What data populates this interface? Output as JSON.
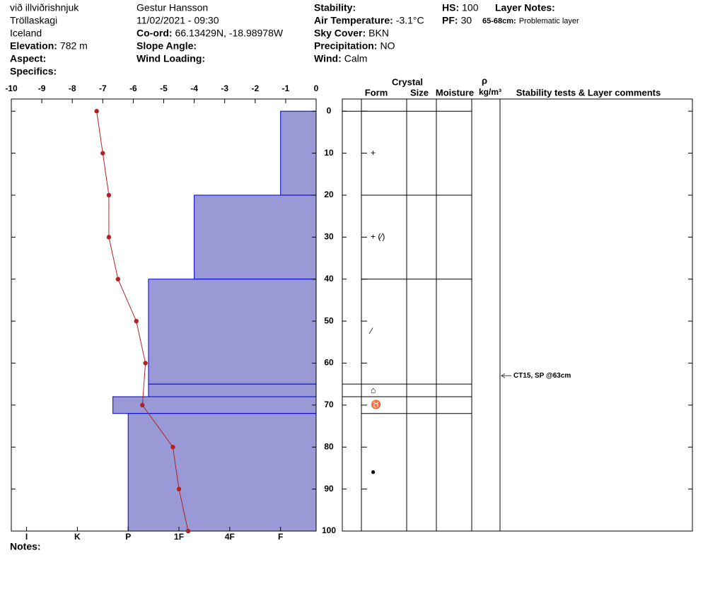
{
  "chart_data": {
    "type": "snow_profile",
    "header": {
      "location": [
        "við illviðrishnjuk",
        "Tröllaskagi",
        "Iceland"
      ],
      "observer": "Gestur Hansson",
      "datetime": "11/02/2021 - 09:30",
      "fields": {
        "elevation": {
          "label": "Elevation:",
          "value": "782 m"
        },
        "aspect": {
          "label": "Aspect:"
        },
        "specifics": {
          "label": "Specifics:"
        },
        "coord": {
          "label": "Co-ord:",
          "value": "66.13429N, -18.98978W"
        },
        "slope_angle": {
          "label": "Slope Angle:"
        },
        "wind_loading": {
          "label": "Wind Loading:"
        },
        "stability": {
          "label": "Stability:"
        },
        "air_temperature": {
          "label": "Air Temperature:",
          "value": "-3.1°C"
        },
        "sky_cover": {
          "label": "Sky Cover:",
          "value": "BKN"
        },
        "precipitation": {
          "label": "Precipitation:",
          "value": "NO"
        },
        "wind": {
          "label": "Wind:",
          "value": "Calm"
        },
        "hs": {
          "label": "HS:",
          "value": "100"
        },
        "pf": {
          "label": "PF:",
          "value": "30"
        },
        "layer_notes": {
          "label": "Layer Notes:"
        },
        "layer_note": {
          "label": "65-68cm:",
          "value": "Problematic layer"
        }
      },
      "notes": {
        "label": "Notes:"
      }
    },
    "columns": {
      "crystal": "Crystal",
      "form": "Form",
      "size": "Size",
      "moisture": "Moisture",
      "density": "ρ",
      "density_unit": "kg/m³",
      "comments": "Stability tests & Layer comments"
    },
    "xlim": [
      -10,
      0
    ],
    "xticks": [
      -10,
      -9,
      -8,
      -7,
      -6,
      -5,
      -4,
      -3,
      -2,
      -1,
      0
    ],
    "ylim": [
      -2.9,
      100
    ],
    "yticks": [
      0,
      10,
      20,
      30,
      40,
      50,
      60,
      70,
      80,
      90,
      100
    ],
    "hardness_lim": [
      6.3,
      0.3
    ],
    "hardness_ticks": [
      {
        "value": 6,
        "label": "I"
      },
      {
        "value": 5,
        "label": "K"
      },
      {
        "value": 4,
        "label": "P"
      },
      {
        "value": 3,
        "label": "1F"
      },
      {
        "value": 2,
        "label": "4F"
      },
      {
        "value": 1,
        "label": "F"
      }
    ],
    "temperature": {
      "depths": [
        0,
        10,
        20,
        30,
        40,
        50,
        60,
        70,
        80,
        90,
        100
      ],
      "values": [
        -7.2,
        -7.0,
        -6.8,
        -6.8,
        -6.5,
        -5.9,
        -5.6,
        -5.7,
        -4.7,
        -4.5,
        -4.2
      ],
      "color": "#b22222"
    },
    "layers": {
      "tops": [
        0,
        20,
        40,
        65,
        68,
        72
      ],
      "bottoms": [
        20,
        40,
        65,
        68,
        72,
        100
      ],
      "hardness": [
        1,
        2.7,
        3.6,
        3.6,
        4.3,
        4
      ],
      "forms": [
        "+",
        "+ (⁄)",
        "⁄",
        "⌂",
        "♉",
        "●"
      ],
      "color": "#9999d6",
      "edge_color": "#0000cc"
    },
    "stability_tests": [
      {
        "depth": 63,
        "label": "CT15, SP @63cm"
      }
    ]
  }
}
